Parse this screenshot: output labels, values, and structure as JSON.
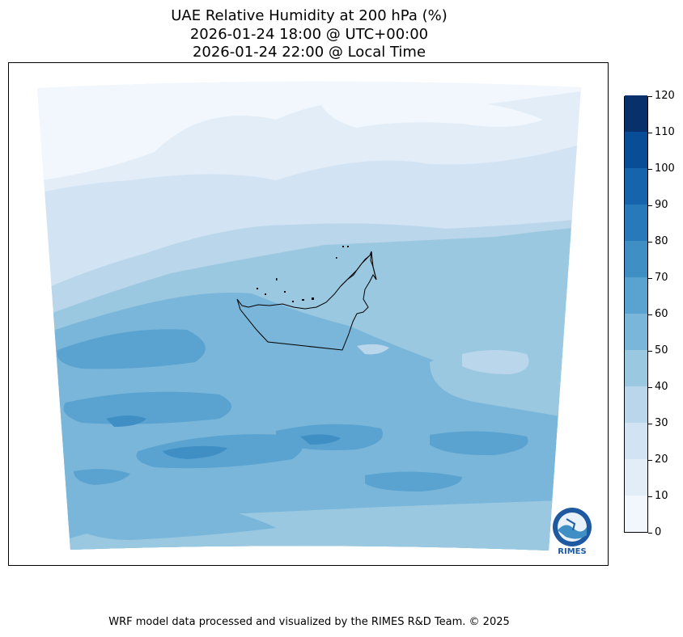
{
  "title": {
    "line1": "UAE Relative Humidity at 200 hPa (%)",
    "line2": "2026-01-24 18:00 @ UTC+00:00",
    "line3": "2026-01-24 22:00 @ Local Time"
  },
  "colorbar": {
    "labels": [
      "0",
      "10",
      "20",
      "30",
      "40",
      "50",
      "60",
      "70",
      "80",
      "90",
      "100",
      "110",
      "120"
    ],
    "colors": [
      "#f1f7fd",
      "#e2edf8",
      "#d2e3f3",
      "#bad6eb",
      "#9ac8e0",
      "#7ab6d9",
      "#5aa2cf",
      "#3f8fc5",
      "#2879b9",
      "#1664ab",
      "#084d96",
      "#08306b"
    ]
  },
  "map": {
    "region": "UAE"
  },
  "logo": {
    "text": "RIMES"
  },
  "credit": "WRF model data processed and visualized by the RIMES R&D Team. © 2025"
}
